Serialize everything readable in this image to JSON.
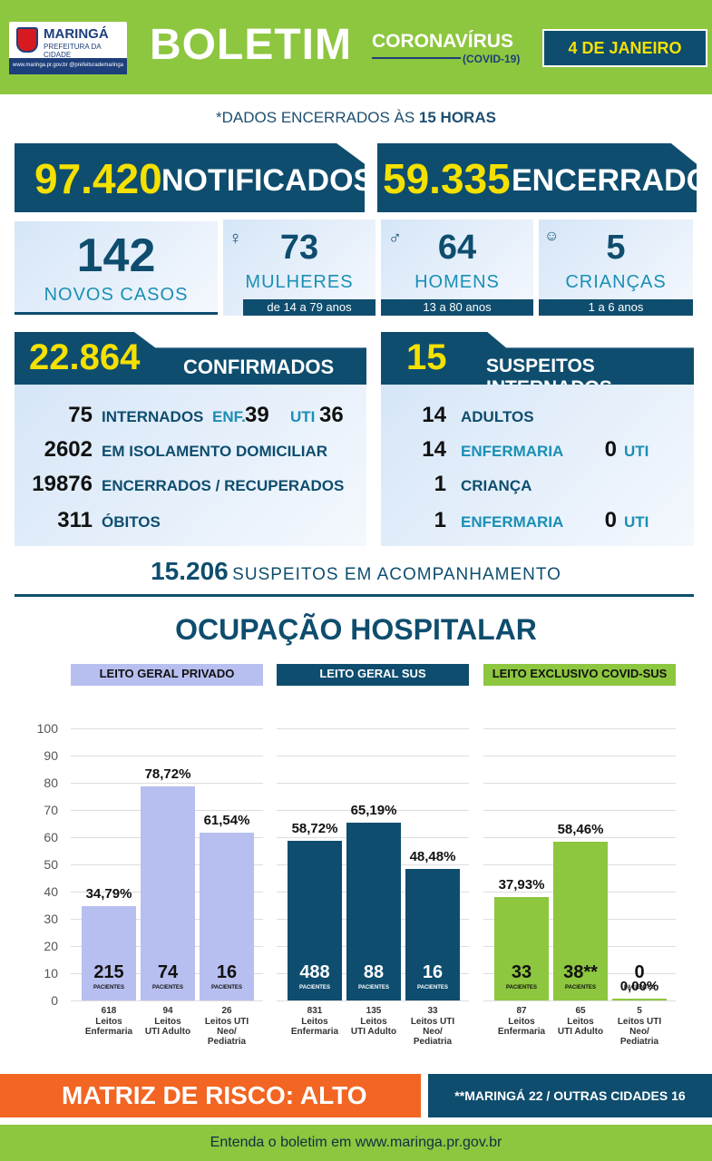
{
  "header": {
    "logo_name": "MARINGÁ",
    "logo_sub": "PREFEITURA DA CIDADE",
    "logo_strip": "www.maringa.pr.gov.br  @prefeiturademaringa",
    "title": "BOLETIM",
    "covid": "CORONAVÍRUS",
    "covid_sub": "(COVID-19)",
    "date": "4 DE JANEIRO"
  },
  "note": {
    "prefix": "*DADOS ENCERRADOS ÀS ",
    "bold": "15 HORAS"
  },
  "totals": {
    "notified_value": "97.420",
    "notified_label": "NOTIFICADOS",
    "closed_value": "59.335",
    "closed_label": "ENCERRADOS"
  },
  "new_cases": {
    "value": "142",
    "label": "NOVOS CASOS",
    "women": {
      "value": "73",
      "label": "MULHERES",
      "range": "de 14 a 79 anos",
      "icon": "female-icon"
    },
    "men": {
      "value": "64",
      "label": "HOMENS",
      "range": "13 a 80 anos",
      "icon": "male-icon"
    },
    "children": {
      "value": "5",
      "label": "CRIANÇAS",
      "range": "1 a 6 anos",
      "icon": "baby-icon"
    }
  },
  "confirmed": {
    "value": "22.864",
    "label": "CONFIRMADOS",
    "hospitalized_value": "75",
    "hospitalized_label": "INTERNADOS",
    "ward_label": "ENF.",
    "ward_value": "39",
    "icu_label": "UTI",
    "icu_value": "36",
    "isolation_value": "2602",
    "isolation_label": "EM ISOLAMENTO DOMICILIAR",
    "recovered_value": "19876",
    "recovered_label": "ENCERRADOS / RECUPERADOS",
    "deaths_value": "311",
    "deaths_label": "ÓBITOS"
  },
  "suspects": {
    "value": "15",
    "label": "SUSPEITOS INTERNADOS",
    "adults_value": "14",
    "adults_label": "ADULTOS",
    "adult_ward_value": "14",
    "adult_ward_label": "ENFERMARIA",
    "adult_icu_value": "0",
    "adult_icu_label": "UTI",
    "child_value": "1",
    "child_label": "CRIANÇA",
    "child_ward_value": "1",
    "child_ward_label": "ENFERMARIA",
    "child_icu_value": "0",
    "child_icu_label": "UTI"
  },
  "monitoring": {
    "value": "15.206",
    "label": "SUSPEITOS EM ACOMPANHAMENTO"
  },
  "hospital_title": "OCUPAÇÃO HOSPITALAR",
  "colors": {
    "private": "#b7bff0",
    "sus": "#0e4d6e",
    "covid": "#8dc63f",
    "accent": "#f5e100",
    "risk": "#f26522"
  },
  "chart_data": {
    "type": "bar",
    "ylim": [
      0,
      100
    ],
    "yticks": [
      "0",
      "10",
      "20",
      "30",
      "40",
      "50",
      "60",
      "70",
      "80",
      "90",
      "100"
    ],
    "patients_label": "PACIENTES",
    "groups": [
      {
        "name": "LEITO GERAL PRIVADO",
        "bars": [
          {
            "pct": 34.79,
            "pct_label": "34,79%",
            "patients": "215",
            "beds": "618",
            "category": [
              "Leitos",
              "Enfermaria"
            ]
          },
          {
            "pct": 78.72,
            "pct_label": "78,72%",
            "patients": "74",
            "beds": "94",
            "category": [
              "Leitos",
              "UTI Adulto"
            ]
          },
          {
            "pct": 61.54,
            "pct_label": "61,54%",
            "patients": "16",
            "beds": "26",
            "category": [
              "Leitos UTI",
              "Neo/",
              "Pediatria"
            ]
          }
        ]
      },
      {
        "name": "LEITO GERAL SUS",
        "bars": [
          {
            "pct": 58.72,
            "pct_label": "58,72%",
            "patients": "488",
            "beds": "831",
            "category": [
              "Leitos",
              "Enfermaria"
            ]
          },
          {
            "pct": 65.19,
            "pct_label": "65,19%",
            "patients": "88",
            "beds": "135",
            "category": [
              "Leitos",
              "UTI Adulto"
            ]
          },
          {
            "pct": 48.48,
            "pct_label": "48,48%",
            "patients": "16",
            "beds": "33",
            "category": [
              "Leitos UTI",
              "Neo/",
              "Pediatria"
            ]
          }
        ]
      },
      {
        "name": "LEITO EXCLUSIVO COVID-SUS",
        "bars": [
          {
            "pct": 37.93,
            "pct_label": "37,93%",
            "patients": "33",
            "beds": "87",
            "category": [
              "Leitos",
              "Enfermaria"
            ]
          },
          {
            "pct": 58.46,
            "pct_label": "58,46%",
            "patients": "38**",
            "beds": "65",
            "category": [
              "Leitos",
              "UTI Adulto"
            ]
          },
          {
            "pct": 0.0,
            "pct_label": "0,00%",
            "patients": "0",
            "beds": "5",
            "category": [
              "Leitos UTI",
              "Neo/",
              "Pediatria"
            ]
          }
        ]
      }
    ]
  },
  "risk": "MATRIZ DE RISCO: ALTO",
  "cities": "**MARINGÁ 22 / OUTRAS CIDADES 16",
  "footer": "Entenda o boletim em www.maringa.pr.gov.br"
}
